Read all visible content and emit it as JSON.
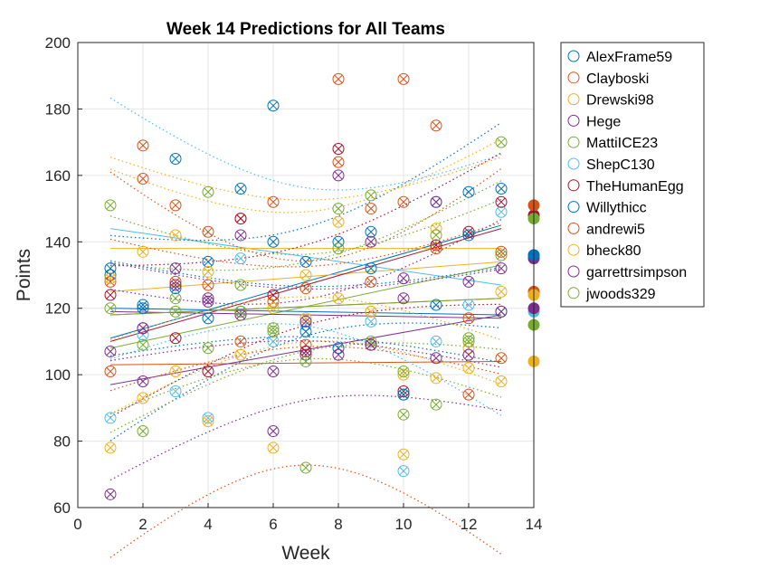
{
  "chart_data": {
    "type": "scatter",
    "title": "Week 14 Predictions for All Teams",
    "xlabel": "Week",
    "ylabel": "Points",
    "xlim": [
      0,
      14
    ],
    "ylim": [
      60,
      200
    ],
    "xticks": [
      0,
      2,
      4,
      6,
      8,
      10,
      12,
      14
    ],
    "yticks": [
      60,
      80,
      100,
      120,
      140,
      160,
      180,
      200
    ],
    "grid": true,
    "legend_position": "outside-right",
    "series": [
      {
        "name": "AlexFrame59",
        "color": "#0072BD",
        "x": [
          1,
          2,
          3,
          4,
          5,
          6,
          7,
          8,
          9,
          10,
          11,
          12,
          13
        ],
        "y": [
          132,
          121,
          165,
          134,
          156,
          181,
          134,
          140,
          143,
          94,
          152,
          155,
          156
        ],
        "fit_start": 111,
        "fit_end": 145,
        "prediction": 136
      },
      {
        "name": "Clayboski",
        "color": "#D95319",
        "x": [
          1,
          2,
          3,
          4,
          5,
          6,
          7,
          8,
          9,
          10,
          11,
          12,
          13
        ],
        "y": [
          101,
          169,
          151,
          143,
          147,
          152,
          109,
          189,
          150,
          189,
          175,
          94,
          105
        ],
        "fit_start": 103,
        "fit_end": 104,
        "prediction": 125
      },
      {
        "name": "Drewski98",
        "color": "#EDB120",
        "x": [
          1,
          2,
          3,
          4,
          5,
          6,
          7,
          8,
          9,
          10,
          11,
          12,
          13
        ],
        "y": [
          78,
          93,
          101,
          131,
          106,
          78,
          130,
          146,
          119,
          76,
          99,
          102,
          98
        ],
        "fit_start": 125,
        "fit_end": 134,
        "prediction": 104
      },
      {
        "name": "Hege",
        "color": "#7E2F8E",
        "x": [
          1,
          2,
          3,
          4,
          5,
          6,
          7,
          8,
          9,
          10,
          11,
          12,
          13
        ],
        "y": [
          64,
          98,
          132,
          123,
          142,
          83,
          106,
          160,
          140,
          123,
          105,
          128,
          132
        ],
        "fit_start": 97,
        "fit_end": 118,
        "prediction": 135
      },
      {
        "name": "MattiICE23",
        "color": "#77AC30",
        "x": [
          1,
          2,
          3,
          4,
          5,
          6,
          7,
          8,
          9,
          10,
          11,
          12,
          13
        ],
        "y": [
          120,
          109,
          123,
          108,
          127,
          114,
          72,
          138,
          110,
          88,
          91,
          111,
          136
        ],
        "fit_start": 108,
        "fit_end": 133,
        "prediction": 115
      },
      {
        "name": "ShepC130",
        "color": "#4DBEEE",
        "x": [
          1,
          2,
          3,
          4,
          5,
          6,
          7,
          8,
          9,
          10,
          11,
          12,
          13
        ],
        "y": [
          87,
          112,
          95,
          87,
          135,
          110,
          115,
          108,
          116,
          71,
          110,
          121,
          149
        ],
        "fit_start": 144,
        "fit_end": 127,
        "prediction": 119
      },
      {
        "name": "TheHumanEgg",
        "color": "#A2142F",
        "x": [
          1,
          2,
          3,
          4,
          5,
          6,
          7,
          8,
          9,
          10,
          11,
          12,
          13
        ],
        "y": [
          124,
          114,
          111,
          101,
          147,
          124,
          107,
          168,
          109,
          95,
          139,
          143,
          152
        ],
        "fit_start": 110,
        "fit_end": 144,
        "prediction": 148
      },
      {
        "name": "Willythicc",
        "color": "#0072BD",
        "x": [
          1,
          2,
          3,
          4,
          5,
          6,
          7,
          8,
          9,
          10,
          11,
          12,
          13
        ],
        "y": [
          130,
          120,
          126,
          117,
          119,
          140,
          113,
          108,
          132,
          94,
          121,
          142,
          119
        ],
        "fit_start": 120,
        "fit_end": 118,
        "prediction": 136
      },
      {
        "name": "andrewi5",
        "color": "#D95319",
        "x": [
          1,
          2,
          3,
          4,
          5,
          6,
          7,
          8,
          9,
          10,
          11,
          12,
          13
        ],
        "y": [
          128,
          159,
          128,
          127,
          110,
          122,
          126,
          164,
          128,
          152,
          138,
          117,
          137
        ],
        "fit_start": 118,
        "fit_end": 123,
        "prediction": 151
      },
      {
        "name": "bheck80",
        "color": "#EDB120",
        "x": [
          1,
          2,
          3,
          4,
          5,
          6,
          7,
          8,
          9,
          10,
          11,
          12,
          13
        ],
        "y": [
          129,
          137,
          142,
          86,
          106,
          120,
          117,
          123,
          119,
          100,
          144,
          108,
          125
        ],
        "fit_start": 138,
        "fit_end": 138,
        "prediction": 124
      },
      {
        "name": "garrettrsimpson",
        "color": "#7E2F8E",
        "x": [
          1,
          2,
          3,
          4,
          5,
          6,
          7,
          8,
          9,
          10,
          11,
          12,
          13
        ],
        "y": [
          107,
          114,
          127,
          122,
          118,
          101,
          116,
          106,
          109,
          129,
          152,
          106,
          119
        ],
        "fit_start": 119,
        "fit_end": 117,
        "prediction": 120
      },
      {
        "name": "jwoods329",
        "color": "#77AC30",
        "x": [
          1,
          2,
          3,
          4,
          5,
          6,
          7,
          8,
          9,
          10,
          11,
          12,
          13
        ],
        "y": [
          151,
          83,
          119,
          155,
          119,
          113,
          104,
          150,
          154,
          101,
          142,
          110,
          170
        ],
        "fit_start": 118,
        "fit_end": 123,
        "prediction": 147
      }
    ]
  }
}
